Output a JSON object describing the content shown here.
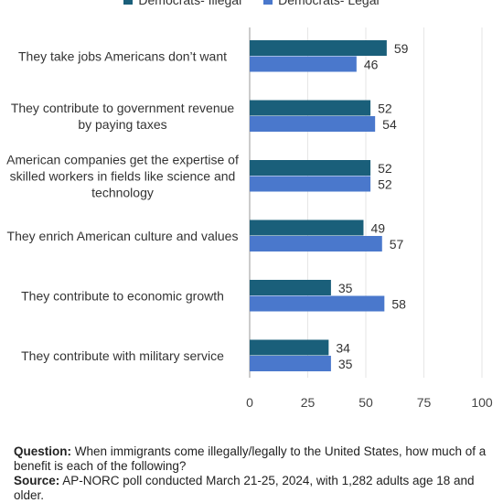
{
  "chart_data": {
    "type": "bar",
    "orientation": "horizontal",
    "categories": [
      "They take jobs Americans don’t want",
      "They contribute to government revenue by paying taxes",
      "American companies get the expertise of skilled workers in fields like science and technology",
      "They enrich American culture and values",
      "They contribute to economic growth",
      "They contribute with military service"
    ],
    "category_lines": [
      [
        "They take jobs Americans don’t want"
      ],
      [
        "They contribute to government revenue",
        "by paying taxes"
      ],
      [
        "American companies get the expertise of",
        "skilled workers in fields like science and",
        "technology"
      ],
      [
        "They enrich American culture and values"
      ],
      [
        "They contribute to economic growth"
      ],
      [
        "They contribute with military service"
      ]
    ],
    "series": [
      {
        "name": "Democrats- Illegal",
        "color": "#1a5f7a",
        "values": [
          59,
          52,
          52,
          49,
          35,
          34
        ]
      },
      {
        "name": "Democrats- Legal",
        "color": "#4a78cc",
        "values": [
          46,
          54,
          52,
          57,
          58,
          35
        ]
      }
    ],
    "xlim": [
      0,
      100
    ],
    "xticks": [
      0,
      25,
      50,
      75,
      100
    ],
    "xtick_labels": [
      "0",
      "25",
      "50",
      "75",
      "100"
    ],
    "grid": true,
    "legend_position": "top"
  },
  "footer": {
    "question_label": "Question:",
    "question_text": "When immigrants come illegally/legally to the United States, how much of a benefit is each of the following?",
    "source_label": "Source:",
    "source_text": "AP-NORC poll conducted March 21-25, 2024, with 1,282 adults age 18 and older."
  }
}
